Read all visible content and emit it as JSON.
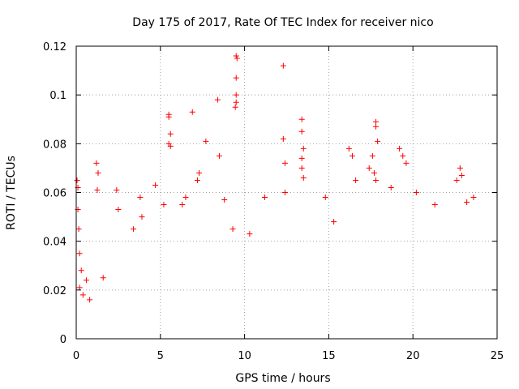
{
  "chart_data": {
    "type": "scatter",
    "title": "Day 175 of 2017, Rate Of TEC Index for receiver nico",
    "xlabel": "GPS time / hours",
    "ylabel": "ROTI / TECUs",
    "xlim": [
      0,
      25
    ],
    "ylim": [
      0,
      0.12
    ],
    "xticks": [
      0,
      5,
      10,
      15,
      20,
      25
    ],
    "xtick_labels": [
      "0",
      "5",
      "10",
      "15",
      "20",
      "25"
    ],
    "yticks": [
      0,
      0.02,
      0.04,
      0.06,
      0.08,
      0.1,
      0.12
    ],
    "ytick_labels": [
      "0",
      "0.02",
      "0.04",
      "0.06",
      "0.08",
      "0.1",
      "0.12"
    ],
    "grid": true,
    "marker": "plus",
    "color": "#ff0000",
    "series": [
      {
        "name": "ROTI",
        "points": [
          [
            0.05,
            0.065
          ],
          [
            0.1,
            0.062
          ],
          [
            0.1,
            0.053
          ],
          [
            0.15,
            0.045
          ],
          [
            0.2,
            0.035
          ],
          [
            0.3,
            0.028
          ],
          [
            0.2,
            0.021
          ],
          [
            0.4,
            0.018
          ],
          [
            0.6,
            0.024
          ],
          [
            0.8,
            0.016
          ],
          [
            1.2,
            0.072
          ],
          [
            1.3,
            0.068
          ],
          [
            1.25,
            0.061
          ],
          [
            1.6,
            0.025
          ],
          [
            2.4,
            0.061
          ],
          [
            2.5,
            0.053
          ],
          [
            3.8,
            0.058
          ],
          [
            3.9,
            0.05
          ],
          [
            3.4,
            0.045
          ],
          [
            4.7,
            0.063
          ],
          [
            5.2,
            0.055
          ],
          [
            5.5,
            0.092
          ],
          [
            5.5,
            0.091
          ],
          [
            5.6,
            0.084
          ],
          [
            5.5,
            0.08
          ],
          [
            5.6,
            0.079
          ],
          [
            6.3,
            0.055
          ],
          [
            6.5,
            0.058
          ],
          [
            6.9,
            0.093
          ],
          [
            7.3,
            0.068
          ],
          [
            7.2,
            0.065
          ],
          [
            7.7,
            0.081
          ],
          [
            8.4,
            0.098
          ],
          [
            8.5,
            0.075
          ],
          [
            8.8,
            0.057
          ],
          [
            9.5,
            0.116
          ],
          [
            9.55,
            0.115
          ],
          [
            9.5,
            0.107
          ],
          [
            9.5,
            0.1
          ],
          [
            9.5,
            0.097
          ],
          [
            9.45,
            0.095
          ],
          [
            9.3,
            0.045
          ],
          [
            10.3,
            0.043
          ],
          [
            11.2,
            0.058
          ],
          [
            12.3,
            0.112
          ],
          [
            12.3,
            0.082
          ],
          [
            12.4,
            0.072
          ],
          [
            12.4,
            0.06
          ],
          [
            13.4,
            0.09
          ],
          [
            13.4,
            0.085
          ],
          [
            13.5,
            0.078
          ],
          [
            13.4,
            0.074
          ],
          [
            13.4,
            0.07
          ],
          [
            13.5,
            0.066
          ],
          [
            14.8,
            0.058
          ],
          [
            15.3,
            0.048
          ],
          [
            16.2,
            0.078
          ],
          [
            16.4,
            0.075
          ],
          [
            16.6,
            0.065
          ],
          [
            17.4,
            0.07
          ],
          [
            17.8,
            0.089
          ],
          [
            17.8,
            0.087
          ],
          [
            17.9,
            0.081
          ],
          [
            17.6,
            0.075
          ],
          [
            17.7,
            0.068
          ],
          [
            17.8,
            0.065
          ],
          [
            18.7,
            0.062
          ],
          [
            19.2,
            0.078
          ],
          [
            19.4,
            0.075
          ],
          [
            19.6,
            0.072
          ],
          [
            20.2,
            0.06
          ],
          [
            21.3,
            0.055
          ],
          [
            22.6,
            0.065
          ],
          [
            22.8,
            0.07
          ],
          [
            22.9,
            0.067
          ],
          [
            23.2,
            0.056
          ],
          [
            23.6,
            0.058
          ]
        ]
      }
    ]
  }
}
